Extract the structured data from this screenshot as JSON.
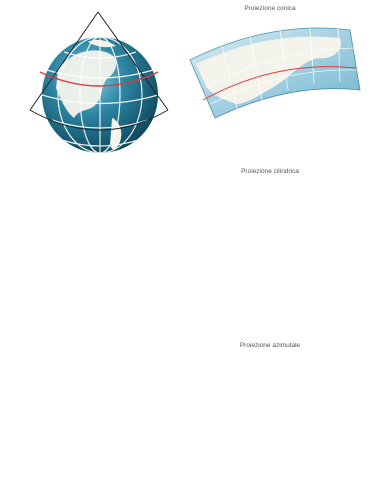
{
  "labels": {
    "conic": "Proiezione conica",
    "cylindrical": "Proiezione cilindrica",
    "azimuthal": "Proiezione azimutale"
  },
  "colors": {
    "ocean_dark": "#1f6d86",
    "ocean_light": "#a9d4e4",
    "land": "#f4f4ee",
    "projection_line": "#e23a3a",
    "outline": "#222222"
  },
  "icons": {
    "globe": "globe-icon",
    "cone": "cone-shape",
    "cylinder": "cylinder-shape",
    "plane": "plane-shape"
  }
}
